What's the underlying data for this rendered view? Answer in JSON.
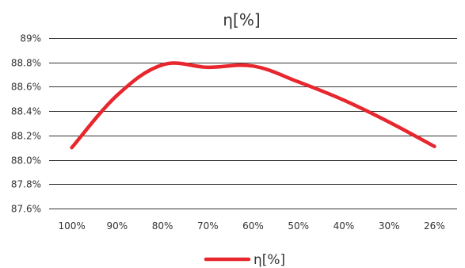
{
  "chart_data": {
    "type": "line",
    "title": "η[%]",
    "xlabel": "",
    "ylabel": "",
    "categories": [
      "100%",
      "90%",
      "80%",
      "70%",
      "60%",
      "50%",
      "40%",
      "30%",
      "26%"
    ],
    "y_tick_labels": [
      "87.6%",
      "87.8%",
      "88.0%",
      "88.2%",
      "88.4%",
      "88.6%",
      "88.8%",
      "89%"
    ],
    "ylim": [
      87.6,
      89.0
    ],
    "grid": true,
    "legend_position": "bottom",
    "series": [
      {
        "name": "η[%]",
        "color": "#e8262d",
        "values": [
          88.1,
          88.53,
          88.78,
          88.76,
          88.77,
          88.64,
          88.49,
          88.31,
          88.11
        ]
      }
    ]
  }
}
